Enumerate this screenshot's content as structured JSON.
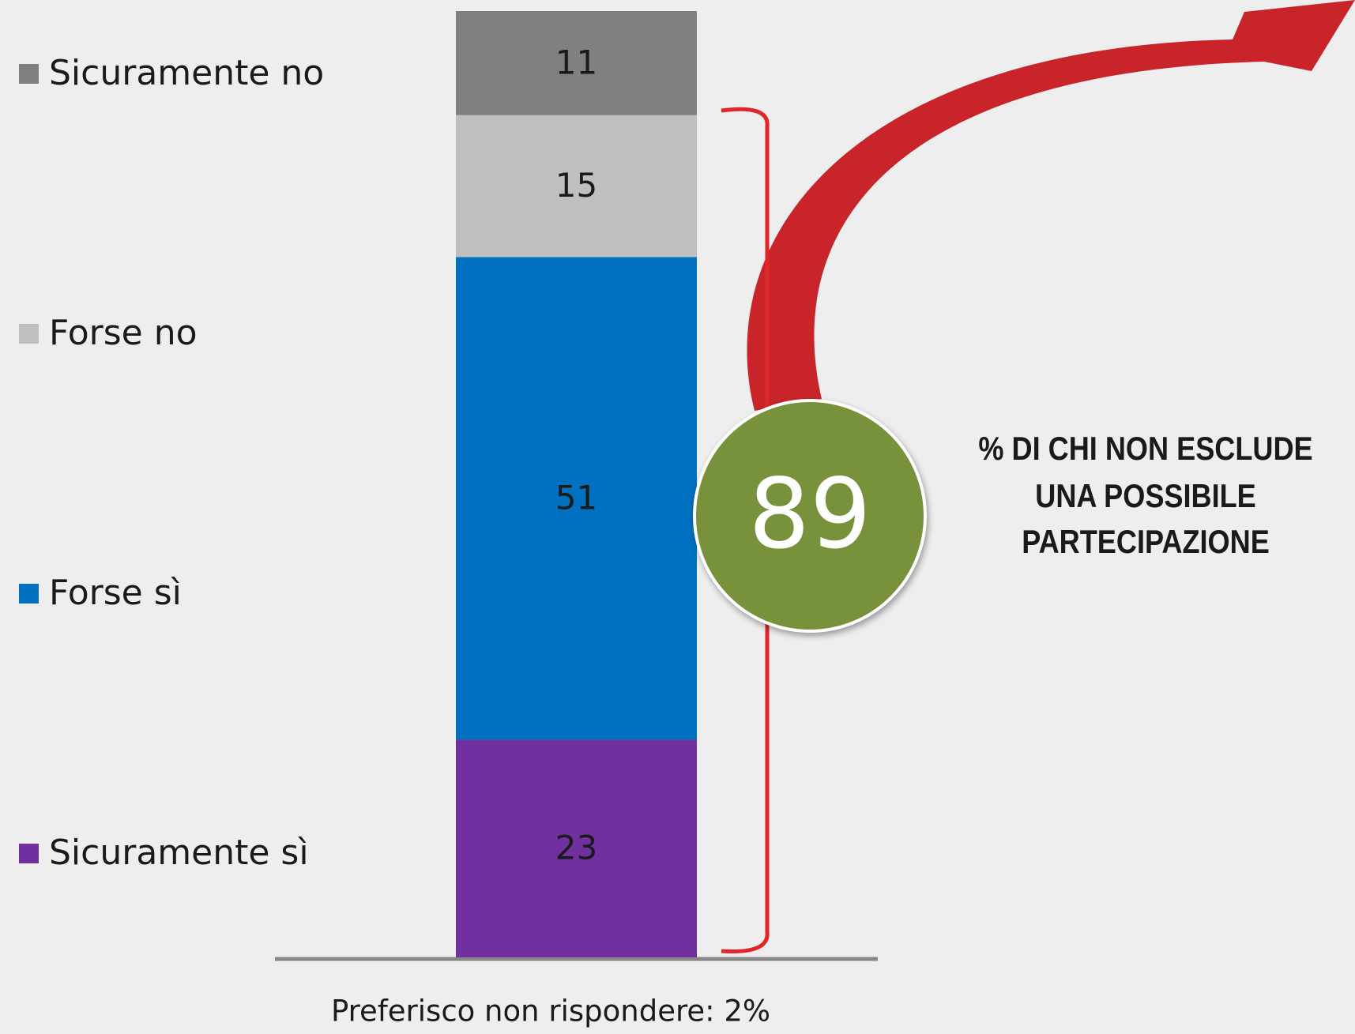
{
  "chart_data": {
    "type": "stacked_bar",
    "categories": [
      null
    ],
    "series": [
      {
        "name": "Sicuramente sì",
        "color": "#7030a0",
        "values": [
          23
        ]
      },
      {
        "name": "Forse sì",
        "color": "#0070c0",
        "values": [
          51
        ]
      },
      {
        "name": "Forse no",
        "color": "#bfbfbf",
        "values": [
          15
        ]
      },
      {
        "name": "Sicuramente no",
        "color": "#808080",
        "values": [
          11
        ]
      }
    ],
    "legend": "left",
    "callout": {
      "value": 89,
      "color": "#77923b",
      "text": [
        "% DI CHI NON ESCLUDE",
        "UNA POSSIBILE",
        "PARTECIPAZIONE"
      ]
    },
    "footnote": "Preferisco non rispondere: 2%"
  }
}
